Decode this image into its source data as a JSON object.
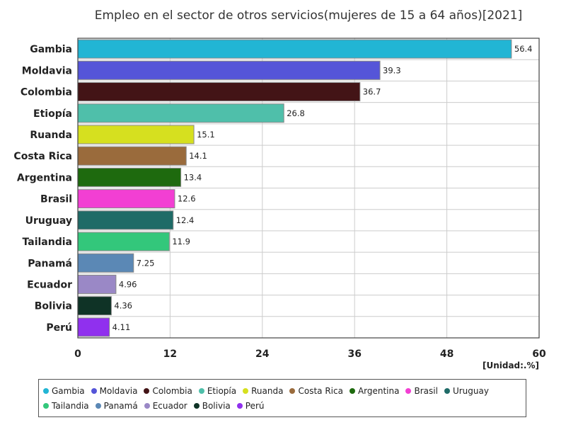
{
  "chart_data": {
    "type": "bar",
    "orientation": "horizontal",
    "title": "Empleo en el sector de otros servicios(mujeres de 15 a 64 años)[2021]",
    "unit_label": "[Unidad:.%]",
    "categories": [
      "Gambia",
      "Moldavia",
      "Colombia",
      "Etiopía",
      "Ruanda",
      "Costa Rica",
      "Argentina",
      "Brasil",
      "Uruguay",
      "Tailandia",
      "Panamá",
      "Ecuador",
      "Bolivia",
      "Perú"
    ],
    "values": [
      56.4,
      39.3,
      36.7,
      26.8,
      15.1,
      14.1,
      13.4,
      12.6,
      12.4,
      11.9,
      7.25,
      4.96,
      4.36,
      4.11
    ],
    "value_labels": [
      "56.4",
      "39.3",
      "36.7",
      "26.8",
      "15.1",
      "14.1",
      "13.4",
      "12.6",
      "12.4",
      "11.9",
      "7.25",
      "4.96",
      "4.36",
      "4.11"
    ],
    "colors": [
      "#22b5d4",
      "#5555d8",
      "#431416",
      "#4fbfaa",
      "#d6e01f",
      "#9a6b3c",
      "#1e6a0e",
      "#f23fd3",
      "#1f6b67",
      "#33c77b",
      "#5b88b5",
      "#9a88c6",
      "#0f3326",
      "#9030ee"
    ],
    "xlim": [
      0,
      60
    ],
    "xticks": [
      0,
      12,
      24,
      36,
      48,
      60
    ],
    "grid": true,
    "legend_position": "bottom"
  }
}
